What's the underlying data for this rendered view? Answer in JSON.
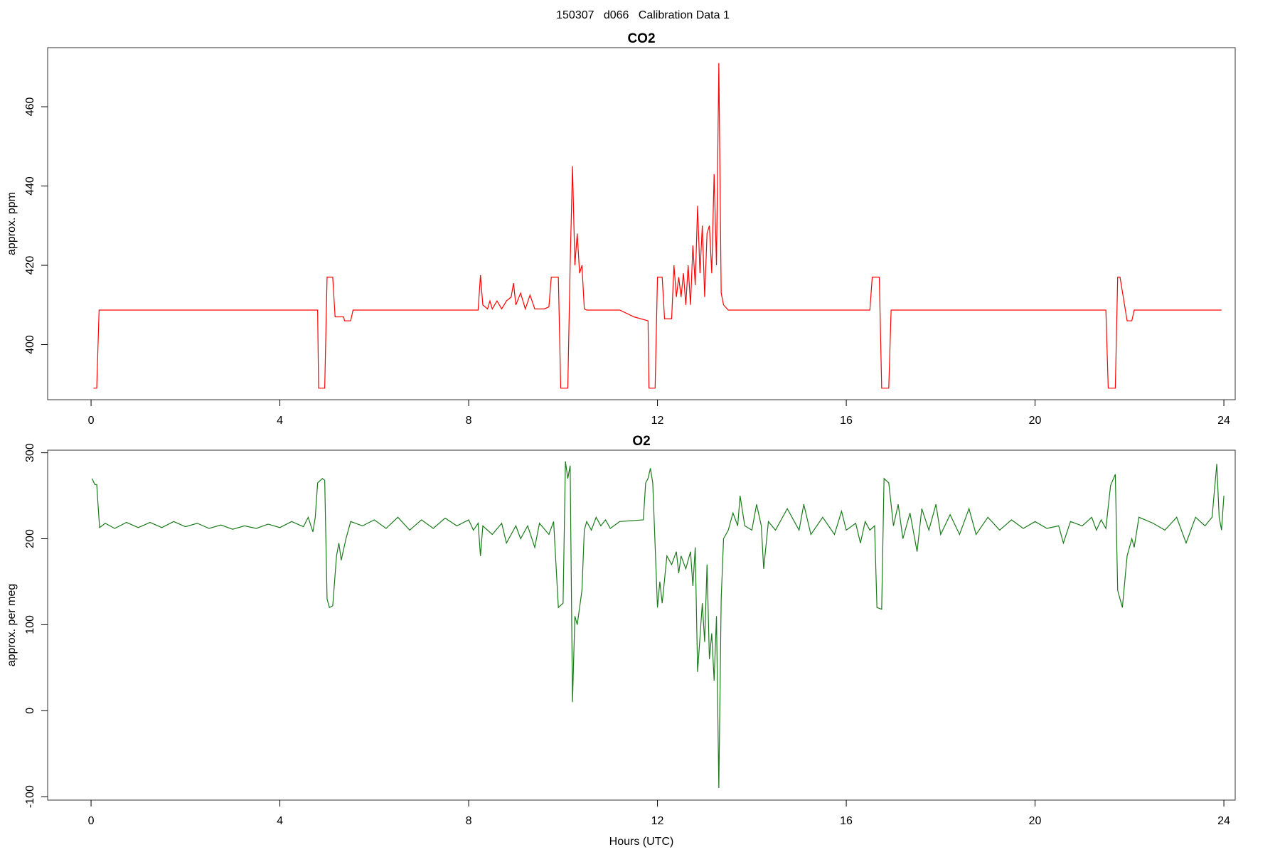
{
  "title": "150307   d066   Calibration Data 1",
  "chart_data": [
    {
      "type": "line",
      "title": "CO2",
      "ylabel": "approx. ppm",
      "xlim": [
        -0.92,
        24.24
      ],
      "ylim": [
        386.1,
        474.9
      ],
      "xticks": [
        0,
        4,
        8,
        12,
        16,
        20,
        24
      ],
      "yticks": [
        400,
        420,
        440,
        460
      ],
      "x": [
        0.05,
        0.12,
        0.17,
        4.8,
        4.82,
        4.95,
        5.0,
        5.12,
        5.17,
        5.35,
        5.37,
        5.5,
        5.55,
        8.2,
        8.25,
        8.3,
        8.4,
        8.45,
        8.5,
        8.6,
        8.7,
        8.8,
        8.9,
        8.95,
        9.0,
        9.1,
        9.2,
        9.3,
        9.4,
        9.6,
        9.7,
        9.75,
        9.9,
        9.95,
        10.1,
        10.15,
        10.2,
        10.25,
        10.3,
        10.35,
        10.4,
        10.45,
        10.5,
        11.2,
        11.5,
        11.8,
        11.82,
        11.95,
        12.0,
        12.1,
        12.15,
        12.3,
        12.35,
        12.4,
        12.45,
        12.5,
        12.55,
        12.6,
        12.65,
        12.7,
        12.75,
        12.8,
        12.85,
        12.9,
        12.95,
        13.0,
        13.05,
        13.1,
        13.15,
        13.2,
        13.25,
        13.3,
        13.35,
        13.4,
        13.5,
        16.5,
        16.55,
        16.7,
        16.75,
        16.9,
        16.95,
        21.5,
        21.55,
        21.7,
        21.75,
        21.8,
        21.95,
        22.05,
        22.1,
        23.95
      ],
      "series": [
        {
          "color": "#ff0000",
          "values": [
            389,
            389,
            408.7,
            408.7,
            389,
            389,
            417,
            417,
            407,
            407,
            406,
            406,
            408.7,
            408.7,
            417.5,
            410,
            409,
            411,
            409,
            411,
            409,
            411,
            412,
            415.5,
            410,
            413,
            409,
            412.5,
            409,
            409,
            409.5,
            417,
            417,
            389,
            389,
            420,
            445,
            420,
            428,
            418,
            420,
            409,
            408.7,
            408.7,
            407,
            406,
            389,
            389,
            417,
            417,
            406.5,
            406.5,
            420,
            412,
            417,
            412,
            418,
            410,
            420,
            410,
            425,
            415,
            435,
            418,
            430,
            412,
            428,
            430,
            418,
            443,
            420,
            471,
            413,
            410,
            408.7,
            408.7,
            417,
            417,
            389,
            389,
            408.7,
            408.7,
            389,
            389,
            417,
            417,
            406,
            406,
            408.7,
            408.7
          ]
        }
      ]
    },
    {
      "type": "line",
      "title": "O2",
      "ylabel": "approx. per meg",
      "xlabel": "Hours (UTC)",
      "xlim": [
        -0.92,
        24.24
      ],
      "ylim": [
        -104,
        303
      ],
      "xticks": [
        0,
        4,
        8,
        12,
        16,
        20,
        24
      ],
      "yticks": [
        -100,
        0,
        100,
        200,
        300
      ],
      "x": [
        0.02,
        0.08,
        0.12,
        0.18,
        0.3,
        0.5,
        0.75,
        1.0,
        1.25,
        1.5,
        1.75,
        2.0,
        2.25,
        2.5,
        2.75,
        3.0,
        3.25,
        3.5,
        3.75,
        4.0,
        4.25,
        4.5,
        4.6,
        4.7,
        4.75,
        4.8,
        4.9,
        4.95,
        5.0,
        5.05,
        5.12,
        5.2,
        5.25,
        5.3,
        5.4,
        5.5,
        5.75,
        6.0,
        6.25,
        6.5,
        6.75,
        7.0,
        7.25,
        7.5,
        7.75,
        8.0,
        8.1,
        8.2,
        8.25,
        8.3,
        8.5,
        8.7,
        8.8,
        9.0,
        9.1,
        9.25,
        9.4,
        9.5,
        9.7,
        9.8,
        9.9,
        10.0,
        10.05,
        10.1,
        10.15,
        10.2,
        10.25,
        10.3,
        10.4,
        10.45,
        10.5,
        10.6,
        10.7,
        10.8,
        10.9,
        11.0,
        11.2,
        11.7,
        11.75,
        11.8,
        11.85,
        11.9,
        12.0,
        12.05,
        12.1,
        12.2,
        12.3,
        12.4,
        12.45,
        12.5,
        12.6,
        12.7,
        12.75,
        12.8,
        12.85,
        12.95,
        13.0,
        13.05,
        13.1,
        13.15,
        13.2,
        13.25,
        13.3,
        13.35,
        13.4,
        13.5,
        13.6,
        13.7,
        13.75,
        13.85,
        14.0,
        14.1,
        14.2,
        14.25,
        14.35,
        14.5,
        14.75,
        15.0,
        15.1,
        15.25,
        15.5,
        15.75,
        15.9,
        16.0,
        16.2,
        16.3,
        16.4,
        16.5,
        16.6,
        16.65,
        16.75,
        16.8,
        16.9,
        17.0,
        17.1,
        17.2,
        17.35,
        17.5,
        17.6,
        17.75,
        17.9,
        18.0,
        18.2,
        18.4,
        18.6,
        18.75,
        19.0,
        19.25,
        19.5,
        19.75,
        20.0,
        20.25,
        20.5,
        20.6,
        20.75,
        21.0,
        21.2,
        21.3,
        21.4,
        21.5,
        21.6,
        21.7,
        21.75,
        21.85,
        21.95,
        22.05,
        22.1,
        22.2,
        22.5,
        22.75,
        23.0,
        23.2,
        23.4,
        23.6,
        23.75,
        23.85,
        23.9,
        23.95,
        24.0
      ],
      "series": [
        {
          "color": "#1a7a1a",
          "values": [
            270,
            263,
            263,
            213,
            218,
            212,
            219,
            213,
            219,
            213,
            220,
            214,
            218,
            212,
            216,
            211,
            215,
            212,
            217,
            213,
            220,
            214,
            225,
            208,
            225,
            265,
            270,
            268,
            130,
            120,
            122,
            180,
            195,
            175,
            200,
            220,
            215,
            222,
            212,
            225,
            210,
            222,
            212,
            224,
            215,
            222,
            210,
            218,
            180,
            215,
            205,
            218,
            195,
            215,
            200,
            215,
            190,
            218,
            205,
            220,
            120,
            125,
            290,
            270,
            285,
            10,
            110,
            100,
            140,
            210,
            220,
            210,
            225,
            215,
            222,
            212,
            220,
            222,
            265,
            270,
            282,
            265,
            120,
            150,
            125,
            180,
            170,
            185,
            160,
            180,
            165,
            185,
            145,
            190,
            45,
            125,
            80,
            170,
            60,
            90,
            35,
            110,
            -90,
            130,
            200,
            210,
            230,
            215,
            250,
            215,
            210,
            240,
            215,
            165,
            220,
            210,
            235,
            210,
            240,
            205,
            225,
            205,
            232,
            210,
            218,
            195,
            220,
            210,
            215,
            120,
            118,
            270,
            265,
            215,
            240,
            200,
            230,
            185,
            235,
            210,
            240,
            205,
            228,
            205,
            235,
            205,
            225,
            210,
            222,
            212,
            220,
            212,
            215,
            195,
            220,
            215,
            225,
            210,
            222,
            212,
            262,
            275,
            140,
            120,
            180,
            200,
            190,
            225,
            218,
            210,
            225,
            195,
            225,
            215,
            225,
            287,
            225,
            210,
            250
          ]
        }
      ]
    }
  ]
}
